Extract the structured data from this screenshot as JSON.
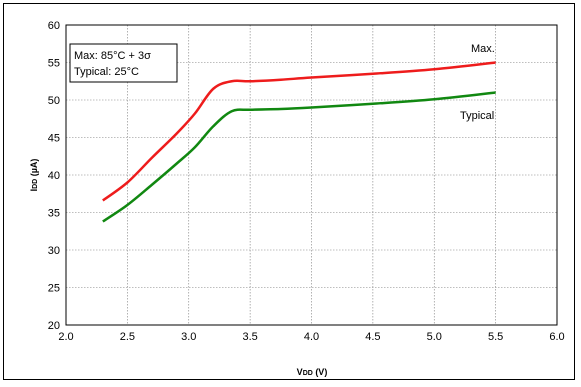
{
  "chart_data": {
    "type": "line",
    "xlabel": {
      "main": "V",
      "sub": "DD",
      "unit": " (V)"
    },
    "ylabel": {
      "main": "I",
      "sub": "DD",
      "unit": " (µA)"
    },
    "xlim": [
      2.0,
      6.0
    ],
    "ylim": [
      20,
      60
    ],
    "x_ticks": [
      "2.0",
      "2.5",
      "3.0",
      "3.5",
      "4.0",
      "4.5",
      "5.0",
      "5.5",
      "6.0"
    ],
    "y_ticks": [
      "20",
      "25",
      "30",
      "35",
      "40",
      "45",
      "50",
      "55",
      "60"
    ],
    "grid": true,
    "annotation": [
      "Max: 85°C + 3σ",
      "Typical: 25°C"
    ],
    "series": [
      {
        "name": "Max.",
        "color": "#ee1c1c",
        "x": [
          2.3,
          2.5,
          2.7,
          2.9,
          3.05,
          3.2,
          3.35,
          3.5,
          3.75,
          4.0,
          4.5,
          5.0,
          5.5
        ],
        "y": [
          36.6,
          39.0,
          42.3,
          45.5,
          48.2,
          51.5,
          52.5,
          52.5,
          52.7,
          53.0,
          53.5,
          54.1,
          55.0
        ]
      },
      {
        "name": "Typical",
        "color": "#118811",
        "x": [
          2.3,
          2.5,
          2.7,
          2.9,
          3.05,
          3.2,
          3.35,
          3.5,
          3.75,
          4.0,
          4.5,
          5.0,
          5.5
        ],
        "y": [
          33.8,
          36.0,
          38.7,
          41.5,
          43.7,
          46.5,
          48.5,
          48.7,
          48.8,
          49.0,
          49.5,
          50.1,
          51.0
        ]
      }
    ]
  }
}
